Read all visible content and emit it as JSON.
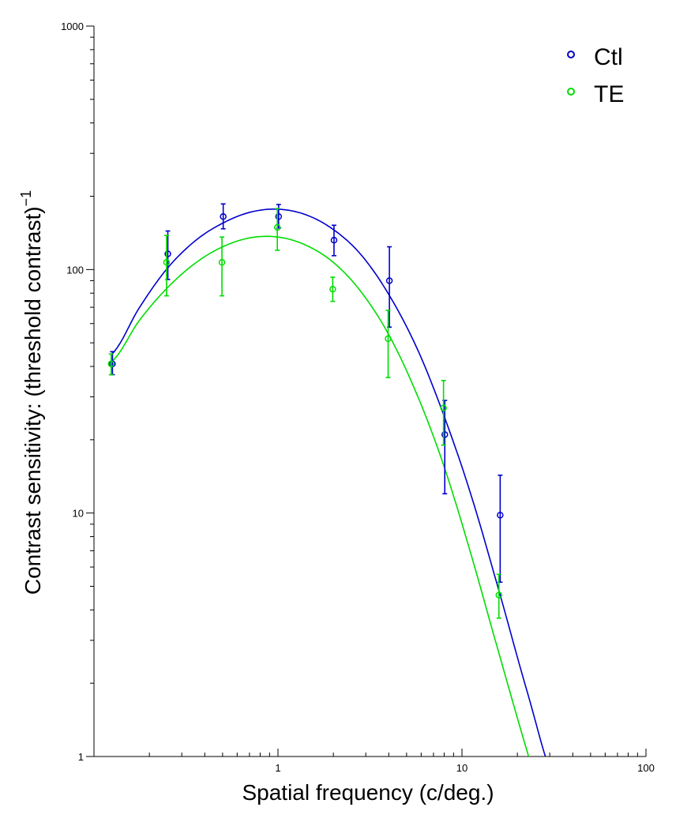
{
  "chart_data": {
    "type": "scatter",
    "xlabel": "Spatial frequency (c/deg.)",
    "ylabel": "Contrast sensitivity: (threshold contrast)",
    "ylabel_superscript": "−1",
    "x_scale": "log",
    "y_scale": "log",
    "xlim": [
      0.1,
      100
    ],
    "ylim": [
      1,
      1000
    ],
    "x_tick_labels": [
      "1",
      "10",
      "100"
    ],
    "y_tick_labels": [
      "1",
      "10",
      "100",
      "1000"
    ],
    "grid": false,
    "legend_position": "top-right",
    "series": [
      {
        "name": "Ctl",
        "color": "#0000cc",
        "points": [
          {
            "x": 0.125,
            "y": 41,
            "lo": 37,
            "hi": 46
          },
          {
            "x": 0.25,
            "y": 116,
            "lo": 91,
            "hi": 144
          },
          {
            "x": 0.5,
            "y": 165,
            "lo": 147,
            "hi": 186
          },
          {
            "x": 1,
            "y": 165,
            "lo": 148,
            "hi": 185
          },
          {
            "x": 2,
            "y": 132,
            "lo": 114,
            "hi": 152
          },
          {
            "x": 4,
            "y": 90,
            "lo": 58,
            "hi": 124
          },
          {
            "x": 8,
            "y": 21,
            "lo": 12,
            "hi": 29
          },
          {
            "x": 16,
            "y": 9.8,
            "lo": 5.2,
            "hi": 14.3
          }
        ],
        "fit": [
          [
            0.125,
            45
          ],
          [
            0.177,
            70
          ],
          [
            0.25,
            101
          ],
          [
            0.354,
            131
          ],
          [
            0.5,
            155
          ],
          [
            0.707,
            172
          ],
          [
            1,
            177
          ],
          [
            1.414,
            168
          ],
          [
            2,
            146
          ],
          [
            2.83,
            115
          ],
          [
            4,
            79
          ],
          [
            5.66,
            48
          ],
          [
            8,
            25
          ],
          [
            11.3,
            11.6
          ],
          [
            16,
            4.7
          ],
          [
            22.6,
            1.85
          ],
          [
            32,
            0.8
          ]
        ]
      },
      {
        "name": "TE",
        "color": "#00dd00",
        "points": [
          {
            "x": 0.125,
            "y": 41,
            "lo": 37,
            "hi": 45
          },
          {
            "x": 0.25,
            "y": 107,
            "lo": 78,
            "hi": 138
          },
          {
            "x": 0.5,
            "y": 107,
            "lo": 78,
            "hi": 136
          },
          {
            "x": 1,
            "y": 149,
            "lo": 120,
            "hi": 178
          },
          {
            "x": 2,
            "y": 83,
            "lo": 74,
            "hi": 93
          },
          {
            "x": 4,
            "y": 52,
            "lo": 36,
            "hi": 68
          },
          {
            "x": 8,
            "y": 27,
            "lo": 19,
            "hi": 35
          },
          {
            "x": 16,
            "y": 4.6,
            "lo": 3.7,
            "hi": 5.6
          }
        ],
        "fit": [
          [
            0.125,
            42
          ],
          [
            0.177,
            62
          ],
          [
            0.25,
            84
          ],
          [
            0.354,
            106
          ],
          [
            0.5,
            124
          ],
          [
            0.707,
            135
          ],
          [
            1,
            136
          ],
          [
            1.414,
            126
          ],
          [
            2,
            107
          ],
          [
            2.83,
            81
          ],
          [
            4,
            54
          ],
          [
            5.66,
            31
          ],
          [
            8,
            15.5
          ],
          [
            11.3,
            6.6
          ],
          [
            16,
            2.6
          ],
          [
            22.6,
            1.05
          ],
          [
            32,
            0.45
          ]
        ]
      }
    ]
  }
}
